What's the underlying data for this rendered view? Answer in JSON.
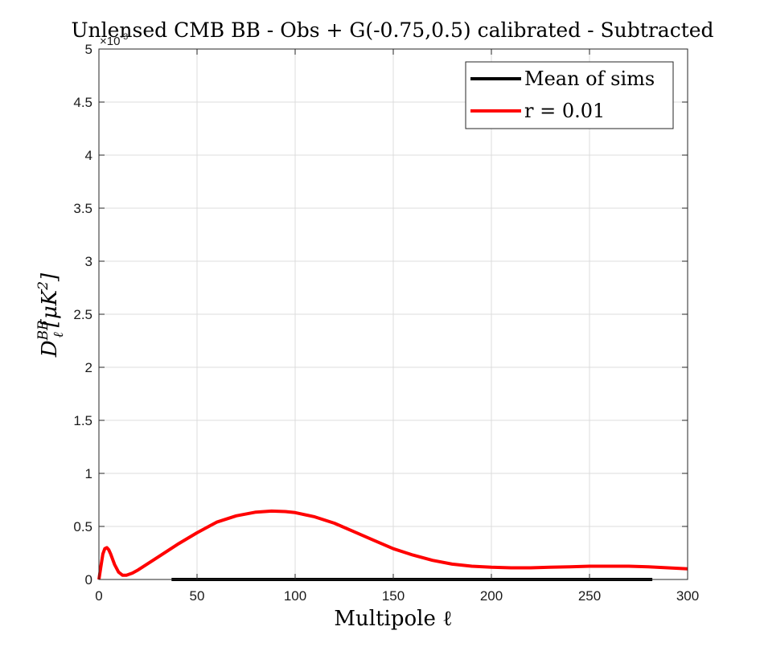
{
  "chart_data": {
    "type": "line",
    "title": "Unlensed CMB BB - Obs + G(-0.75,0.5) calibrated - Subtracted",
    "xlabel": "Multipole ℓ",
    "ylabel": {
      "main": "D",
      "sub": "ℓ",
      "sup": "BB",
      "unit": "[μK",
      "unit_sup": "2",
      "unit_close": "]"
    },
    "y_exponent": {
      "base": "×10",
      "power": "-3"
    },
    "xlim": [
      0,
      300
    ],
    "ylim": [
      0,
      5
    ],
    "x_ticks": [
      0,
      50,
      100,
      150,
      200,
      250,
      300
    ],
    "x_tick_labels": [
      "0",
      "50",
      "100",
      "150",
      "200",
      "250",
      "300"
    ],
    "y_ticks": [
      0,
      0.5,
      1,
      1.5,
      2,
      2.5,
      3,
      3.5,
      4,
      4.5,
      5
    ],
    "y_tick_labels": [
      "0",
      "0.5",
      "1",
      "1.5",
      "2",
      "2.5",
      "3",
      "3.5",
      "4",
      "4.5",
      "5"
    ],
    "grid": true,
    "legend_position": "top-right",
    "series": [
      {
        "name": "Mean of sims",
        "color": "#000000",
        "x": [
          37,
          60,
          100,
          150,
          200,
          250,
          282
        ],
        "y": [
          0,
          0,
          0,
          0,
          0,
          0,
          0
        ]
      },
      {
        "name": "r = 0.01",
        "color": "#ff0000",
        "x": [
          0,
          1,
          2,
          3,
          4,
          5,
          6,
          8,
          10,
          12,
          14,
          17,
          20,
          25,
          30,
          40,
          50,
          60,
          70,
          80,
          88,
          95,
          100,
          110,
          120,
          130,
          140,
          150,
          160,
          170,
          180,
          190,
          200,
          210,
          220,
          230,
          240,
          250,
          260,
          270,
          280,
          290,
          300
        ],
        "y": [
          0,
          0.12,
          0.24,
          0.29,
          0.3,
          0.28,
          0.24,
          0.14,
          0.07,
          0.04,
          0.04,
          0.06,
          0.09,
          0.15,
          0.21,
          0.33,
          0.44,
          0.54,
          0.6,
          0.635,
          0.645,
          0.64,
          0.63,
          0.59,
          0.53,
          0.45,
          0.37,
          0.29,
          0.23,
          0.18,
          0.145,
          0.125,
          0.115,
          0.11,
          0.11,
          0.115,
          0.12,
          0.125,
          0.125,
          0.125,
          0.12,
          0.11,
          0.1
        ]
      }
    ]
  }
}
